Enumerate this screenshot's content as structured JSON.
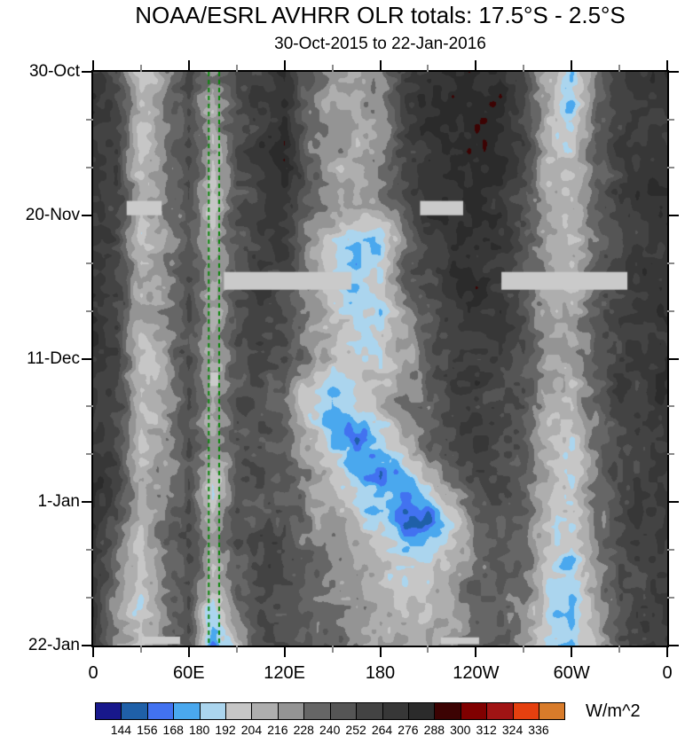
{
  "header": {
    "title": "NOAA/ESRL AVHRR OLR totals: 17.5°S - 2.5°S",
    "subtitle": "30-Oct-2015 to 22-Jan-2016"
  },
  "chart_data": {
    "type": "heatmap",
    "title": "NOAA/ESRL AVHRR OLR totals: 17.5°S - 2.5°S",
    "subtitle": "30-Oct-2015 to 22-Jan-2016",
    "description": "Time-longitude (Hovmoller) plot of outgoing longwave radiation totals averaged 17.5S-2.5S",
    "x_axis": {
      "range_deg": [
        0,
        360
      ],
      "major_tick_deg": [
        0,
        60,
        120,
        180,
        240,
        300,
        360
      ],
      "major_tick_labels": [
        "0",
        "60E",
        "120E",
        "180",
        "120W",
        "60W",
        "0"
      ],
      "minor_tick_deg": [
        30,
        90,
        150,
        210,
        270,
        330
      ]
    },
    "y_axis": {
      "range_days": [
        0,
        84
      ],
      "major_tick_days": [
        0,
        21,
        42,
        63,
        84
      ],
      "major_tick_labels": [
        "30-Oct",
        "20-Nov",
        "11-Dec",
        "1-Jan",
        "22-Jan"
      ],
      "minor_tick_days": [
        7,
        14,
        28,
        35,
        49,
        56,
        70,
        77
      ],
      "minor_tick_color": "#8a8a8a"
    },
    "colorbar": {
      "unit_label": "W/m^2",
      "boundary_labels": [
        "144",
        "156",
        "168",
        "180",
        "192",
        "204",
        "216",
        "228",
        "240",
        "252",
        "264",
        "276",
        "288",
        "300",
        "312",
        "324",
        "336"
      ],
      "levels": [
        144,
        156,
        168,
        180,
        192,
        204,
        216,
        228,
        240,
        252,
        264,
        276,
        288,
        300,
        312,
        324,
        336
      ],
      "colors": [
        "#18188c",
        "#1f60a8",
        "#4272f0",
        "#4aa8ee",
        "#abd5ee",
        "#c6c6c6",
        "#aeaeae",
        "#949494",
        "#666666",
        "#555555",
        "#434343",
        "#373737",
        "#2b2b2b",
        "#3c0303",
        "#800000",
        "#a01414",
        "#e5400f",
        "#d87b2a"
      ]
    },
    "reference_lines": {
      "color": "#0a870a",
      "style": "dashed",
      "lons_deg": [
        72.5,
        79
      ]
    },
    "missing_data_bars": {
      "color": "#cacaca",
      "bars": [
        {
          "lon": [
            21,
            43
          ],
          "day": [
            18.9,
            21.0
          ]
        },
        {
          "lon": [
            205,
            232
          ],
          "day": [
            18.9,
            21.0
          ]
        },
        {
          "lon": [
            82,
            162
          ],
          "day": [
            29.3,
            31.9
          ]
        },
        {
          "lon": [
            256,
            335
          ],
          "day": [
            29.3,
            31.9
          ]
        },
        {
          "lon": [
            73.5,
            78.5
          ],
          "day": [
            44.0,
            46.0
          ]
        },
        {
          "lon": [
            30.5,
            54.5
          ],
          "day": [
            82.7,
            83.8
          ]
        },
        {
          "lon": [
            218,
            242
          ],
          "day": [
            82.8,
            83.8
          ]
        }
      ]
    },
    "grid": {
      "lons_deg": [
        0,
        15,
        30,
        45,
        60,
        75,
        90,
        105,
        120,
        135,
        150,
        165,
        180,
        195,
        210,
        225,
        240,
        255,
        270,
        285,
        300,
        315,
        330,
        345,
        360
      ],
      "days": [
        0,
        6,
        12,
        18,
        24,
        30,
        36,
        42,
        48,
        54,
        60,
        66,
        72,
        78,
        84
      ],
      "olr_values": [
        [
          272,
          245,
          196,
          228,
          252,
          222,
          248,
          262,
          280,
          240,
          218,
          214,
          230,
          258,
          272,
          280,
          282,
          278,
          258,
          212,
          188,
          228,
          255,
          268,
          272
        ],
        [
          271,
          252,
          205,
          226,
          250,
          214,
          250,
          266,
          281,
          236,
          214,
          210,
          226,
          256,
          271,
          281,
          283,
          277,
          256,
          210,
          185,
          232,
          257,
          269,
          271
        ],
        [
          270,
          256,
          198,
          222,
          249,
          209,
          251,
          267,
          279,
          239,
          220,
          212,
          224,
          254,
          269,
          278,
          281,
          274,
          254,
          209,
          200,
          236,
          259,
          268,
          270
        ],
        [
          271,
          257,
          204,
          224,
          251,
          192,
          247,
          264,
          276,
          237,
          217,
          214,
          228,
          252,
          271,
          279,
          280,
          271,
          251,
          214,
          206,
          238,
          261,
          269,
          271
        ],
        [
          270,
          255,
          196,
          219,
          248,
          204,
          244,
          261,
          272,
          229,
          204,
          182,
          175,
          230,
          262,
          276,
          279,
          269,
          249,
          212,
          202,
          234,
          258,
          267,
          270
        ],
        [
          271,
          257,
          207,
          221,
          249,
          209,
          246,
          259,
          257,
          224,
          196,
          170,
          195,
          238,
          258,
          270,
          276,
          267,
          247,
          214,
          207,
          237,
          259,
          267,
          270
        ],
        [
          272,
          259,
          211,
          224,
          251,
          214,
          249,
          257,
          251,
          227,
          208,
          194,
          186,
          216,
          245,
          262,
          271,
          264,
          249,
          217,
          211,
          239,
          261,
          267,
          271
        ],
        [
          271,
          256,
          193,
          218,
          248,
          207,
          244,
          254,
          249,
          229,
          214,
          204,
          194,
          210,
          236,
          256,
          266,
          261,
          247,
          214,
          209,
          237,
          259,
          266,
          270
        ],
        [
          270,
          255,
          204,
          219,
          249,
          211,
          240,
          246,
          236,
          191,
          173,
          199,
          214,
          224,
          240,
          258,
          265,
          259,
          244,
          211,
          204,
          234,
          257,
          265,
          269
        ],
        [
          271,
          256,
          209,
          221,
          250,
          214,
          242,
          247,
          240,
          209,
          176,
          159,
          181,
          209,
          234,
          254,
          262,
          257,
          241,
          209,
          199,
          231,
          255,
          264,
          268
        ],
        [
          272,
          258,
          207,
          219,
          247,
          196,
          243,
          249,
          244,
          224,
          204,
          184,
          167,
          176,
          205,
          234,
          254,
          254,
          239,
          206,
          194,
          227,
          253,
          263,
          267
        ],
        [
          272,
          238,
          204,
          230,
          250,
          209,
          245,
          251,
          249,
          234,
          217,
          204,
          186,
          161,
          156,
          196,
          229,
          247,
          237,
          204,
          189,
          224,
          251,
          262,
          266
        ],
        [
          271,
          228,
          199,
          232,
          251,
          206,
          247,
          254,
          251,
          239,
          224,
          214,
          204,
          189,
          186,
          206,
          234,
          244,
          234,
          199,
          184,
          219,
          249,
          261,
          265
        ],
        [
          270,
          218,
          191,
          232,
          252,
          185,
          228,
          253,
          252,
          241,
          229,
          221,
          214,
          207,
          204,
          216,
          237,
          241,
          229,
          194,
          177,
          214,
          247,
          259,
          264
        ],
        [
          269,
          220,
          194,
          228,
          248,
          163,
          205,
          251,
          251,
          239,
          231,
          224,
          217,
          211,
          209,
          217,
          237,
          239,
          227,
          191,
          179,
          211,
          245,
          257,
          263
        ]
      ]
    },
    "render_hints": {
      "noise_octaves": [
        {
          "scale": 9,
          "amp": 10
        },
        {
          "scale": 26,
          "amp": 7
        }
      ],
      "background": "#ffffff"
    }
  }
}
